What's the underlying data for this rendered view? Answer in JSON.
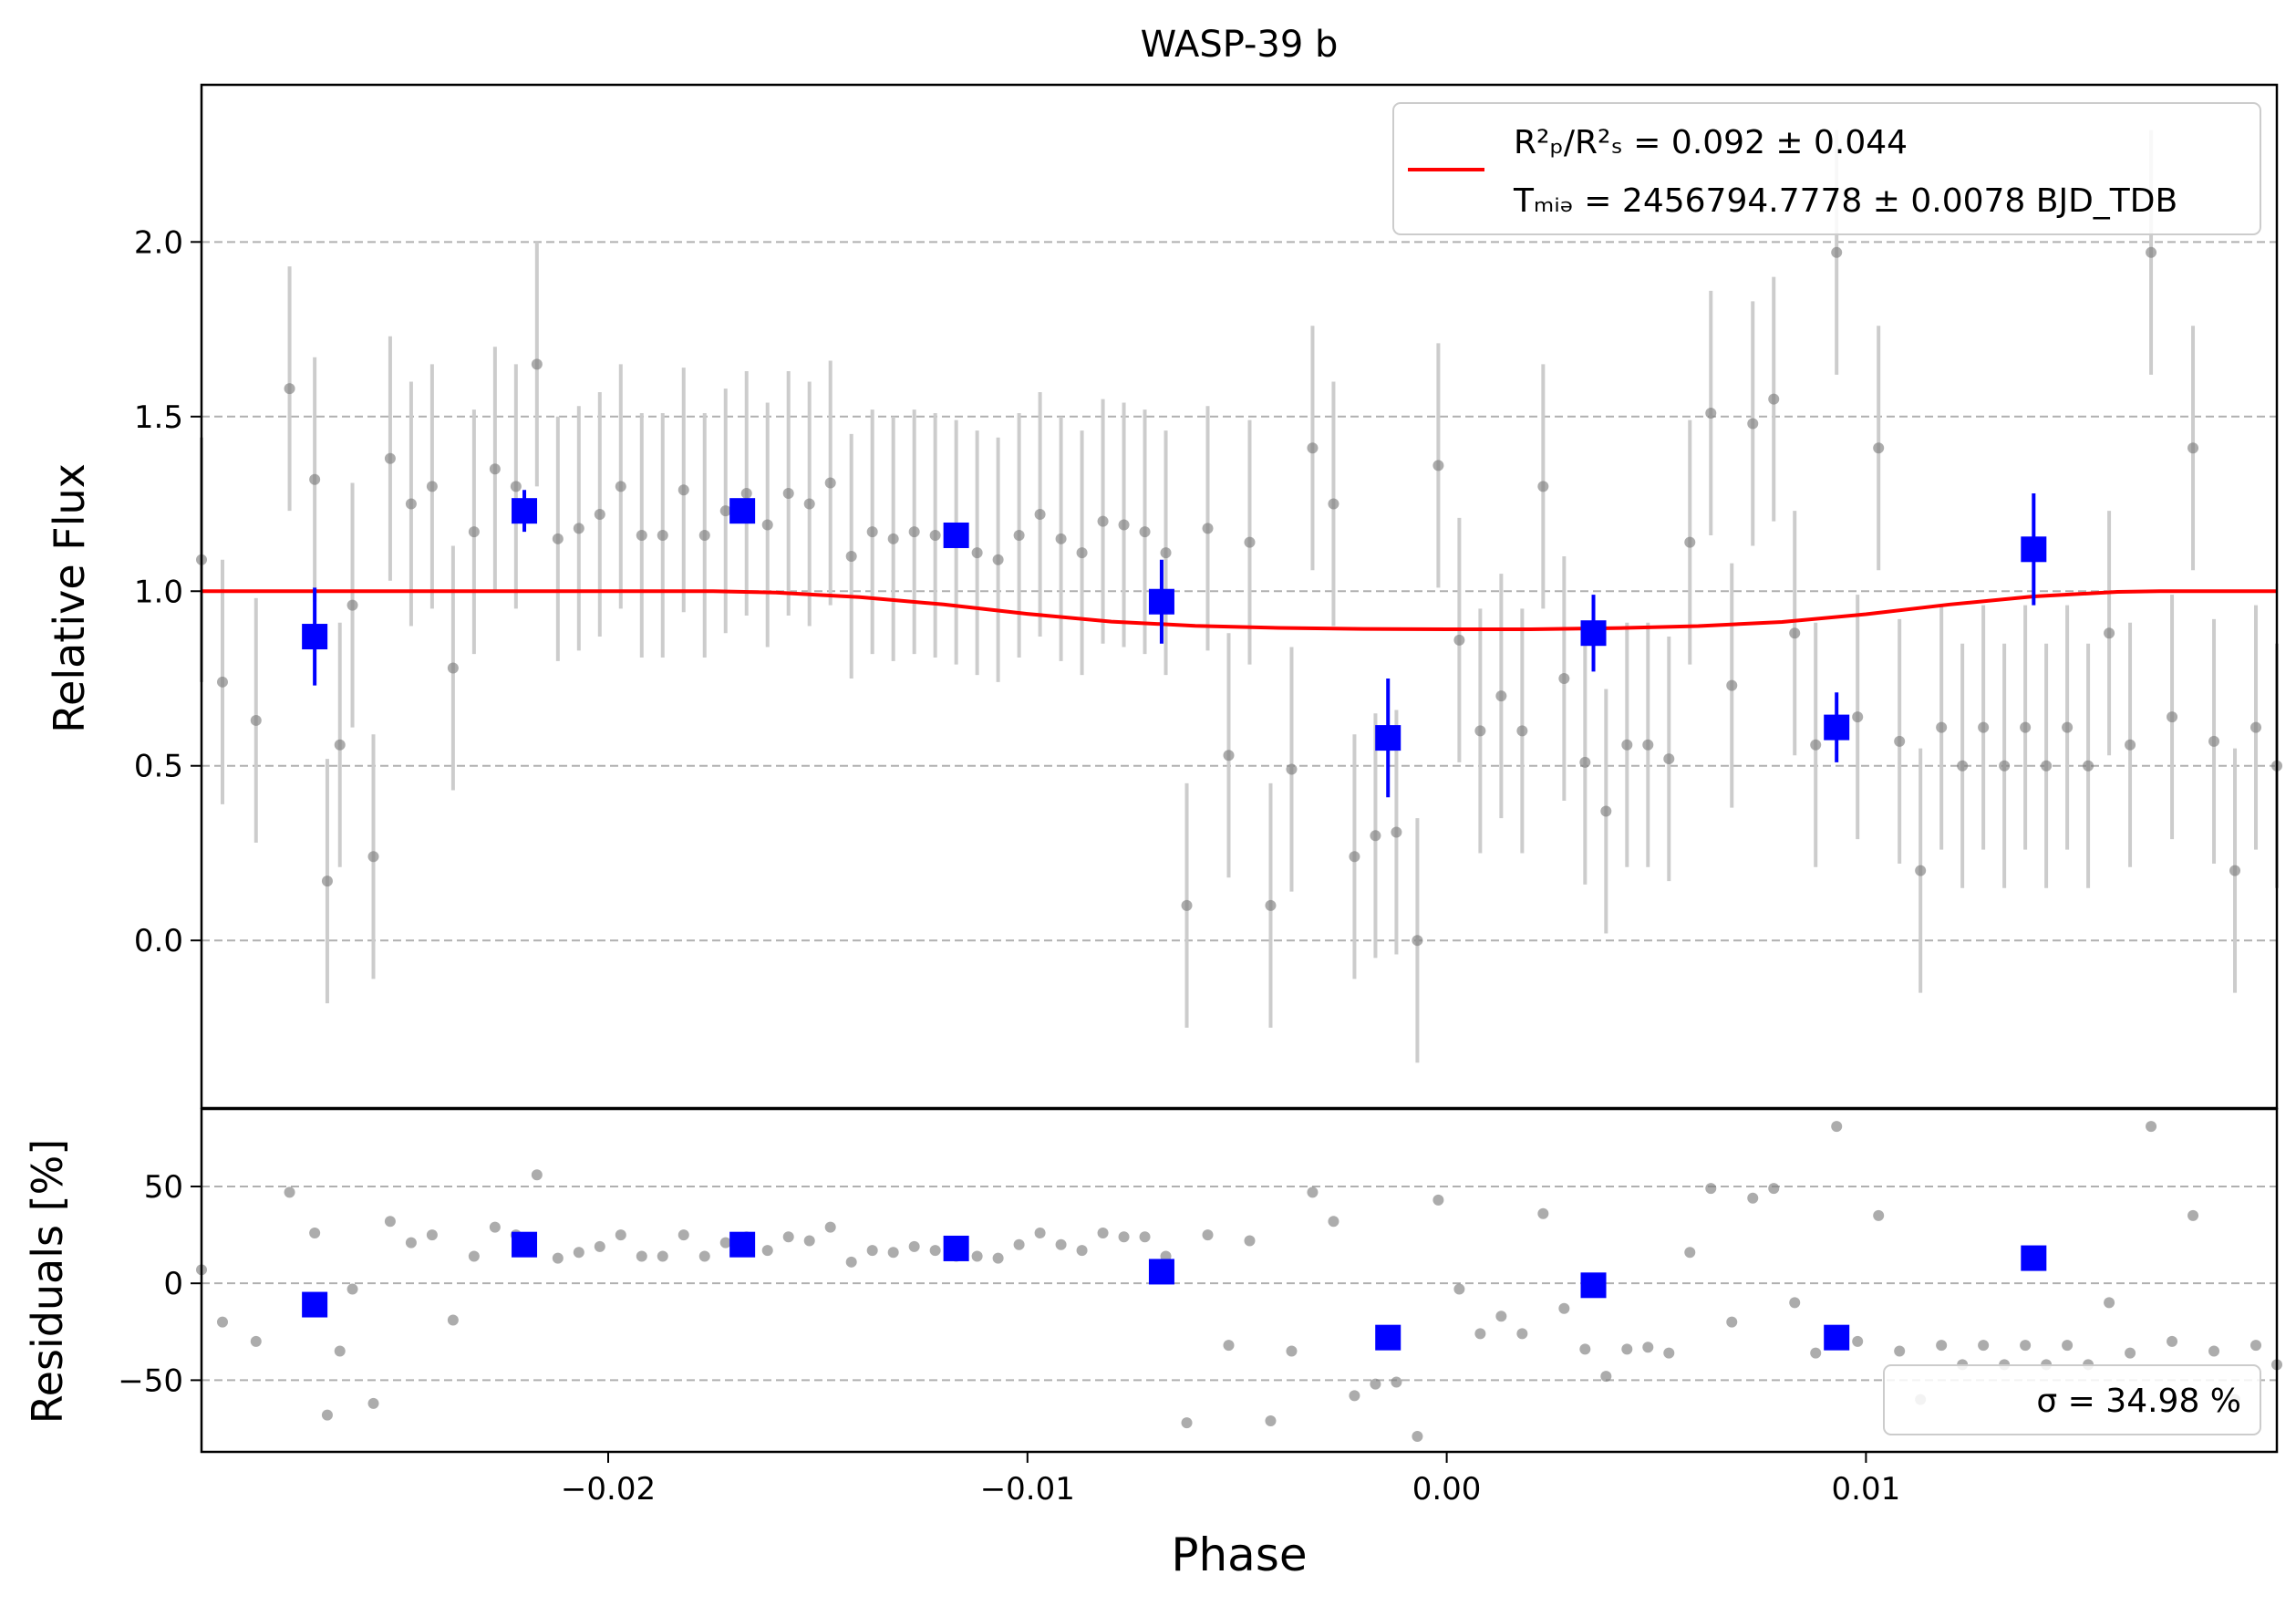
{
  "chart_data": {
    "type": "scatter",
    "title": "WASP-39 b",
    "x": {
      "label": "Phase",
      "range": [
        -0.0297,
        0.0198
      ],
      "ticks": [
        -0.02,
        -0.01,
        0.0,
        0.01
      ],
      "tick_labels": [
        "−0.02",
        "−0.01",
        "0.00",
        "0.01"
      ]
    },
    "top_panel": {
      "ylabel": "Relative Flux",
      "ylim": [
        -0.48,
        2.45
      ],
      "yticks": [
        0.0,
        0.5,
        1.0,
        1.5,
        2.0
      ],
      "ytick_labels": [
        "0.0",
        "0.5",
        "1.0",
        "1.5",
        "2.0"
      ],
      "grid": "horizontal dashed",
      "legend": {
        "placement": "top-right",
        "line_color": "#ff0000",
        "line1": "R²ₚ/R²ₛ = 0.092 ± 0.044",
        "line2": "Tₘᵢₔ = 2456794.7778 ± 0.0078 BJD_TDB"
      },
      "model": {
        "color": "#ff0000",
        "x": [
          -0.0297,
          -0.0175,
          -0.016,
          -0.014,
          -0.012,
          -0.01,
          -0.008,
          -0.006,
          -0.004,
          -0.002,
          0.0,
          0.002,
          0.004,
          0.006,
          0.008,
          0.01,
          0.012,
          0.014,
          0.016,
          0.017,
          0.0198
        ],
        "flux": [
          1.0,
          1.0,
          0.996,
          0.983,
          0.962,
          0.935,
          0.913,
          0.901,
          0.895,
          0.892,
          0.891,
          0.891,
          0.894,
          0.9,
          0.912,
          0.934,
          0.962,
          0.985,
          0.998,
          1.0,
          1.0
        ]
      },
      "raw": {
        "color": "#808080",
        "errorbar_color": "#cccccc",
        "x": [
          -0.0297,
          -0.0292,
          -0.0284,
          -0.0276,
          -0.027,
          -0.0267,
          -0.0264,
          -0.0261,
          -0.0256,
          -0.0252,
          -0.0247,
          -0.0242,
          -0.0237,
          -0.0232,
          -0.0227,
          -0.0222,
          -0.0217,
          -0.0212,
          -0.0207,
          -0.0202,
          -0.0197,
          -0.0192,
          -0.0187,
          -0.0182,
          -0.0177,
          -0.0172,
          -0.0167,
          -0.0162,
          -0.0157,
          -0.0152,
          -0.0147,
          -0.0142,
          -0.0137,
          -0.0132,
          -0.0127,
          -0.0122,
          -0.0117,
          -0.0112,
          -0.0107,
          -0.0102,
          -0.0097,
          -0.0092,
          -0.0087,
          -0.0082,
          -0.0077,
          -0.0072,
          -0.0067,
          -0.0062,
          -0.0057,
          -0.0052,
          -0.0047,
          -0.0042,
          -0.0037,
          -0.0032,
          -0.0027,
          -0.0022,
          -0.0017,
          -0.0012,
          -0.0007,
          -0.0002,
          0.0003,
          0.0008,
          0.0013,
          0.0018,
          0.0023,
          0.0028,
          0.0033,
          0.0038,
          0.0043,
          0.0048,
          0.0053,
          0.0058,
          0.0063,
          0.0068,
          0.0073,
          0.0078,
          0.0083,
          0.0088,
          0.0093,
          0.0098,
          0.0103,
          0.0108,
          0.0113,
          0.0118,
          0.0123,
          0.0128,
          0.0133,
          0.0138,
          0.0143,
          0.0148,
          0.0153,
          0.0158,
          0.0163,
          0.0168,
          0.0173,
          0.0178,
          0.0183,
          0.0188,
          0.0193,
          0.0198
        ],
        "flux": [
          1.09,
          0.74,
          0.63,
          1.58,
          1.32,
          0.17,
          0.56,
          0.96,
          0.24,
          1.38,
          1.25,
          1.3,
          0.78,
          1.17,
          1.35,
          1.3,
          1.65,
          1.15,
          1.18,
          1.22,
          1.3,
          1.16,
          1.16,
          1.29,
          1.16,
          1.23,
          1.28,
          1.19,
          1.28,
          1.25,
          1.31,
          1.1,
          1.17,
          1.15,
          1.17,
          1.16,
          1.14,
          1.11,
          1.09,
          1.16,
          1.22,
          1.15,
          1.11,
          1.2,
          1.19,
          1.17,
          1.11,
          0.1,
          1.18,
          0.53,
          1.14,
          0.1,
          0.49,
          1.41,
          1.25,
          0.24,
          0.3,
          0.31,
          0.0,
          1.36,
          0.86,
          0.6,
          0.7,
          0.6,
          1.3,
          0.75,
          0.51,
          0.37,
          0.56,
          0.56,
          0.52,
          1.14,
          1.51,
          0.73,
          1.48,
          1.55,
          0.88,
          0.56,
          1.97,
          0.64,
          1.41,
          0.57,
          0.2,
          0.61,
          0.5,
          0.61,
          0.5,
          0.61,
          0.5,
          0.61,
          0.5,
          0.88,
          0.56,
          1.97,
          0.64,
          1.41,
          0.57,
          0.2,
          0.61,
          0.5
        ],
        "error": 0.35
      },
      "binned": {
        "color": "#0000ff",
        "x": [
          -0.027,
          -0.022,
          -0.0168,
          -0.0117,
          -0.0068,
          -0.0014,
          0.0035,
          0.0093,
          0.014
        ],
        "flux": [
          0.87,
          1.23,
          1.23,
          1.16,
          0.97,
          0.58,
          0.88,
          0.61,
          1.12
        ],
        "error": [
          0.14,
          0.06,
          0.03,
          0.03,
          0.12,
          0.17,
          0.11,
          0.1,
          0.16
        ]
      }
    },
    "bottom_panel": {
      "ylabel": "Residuals [%]",
      "ylim": [
        -87,
        90
      ],
      "yticks": [
        -50,
        0,
        50
      ],
      "ytick_labels": [
        "−50",
        "0",
        "50"
      ],
      "grid": "horizontal dashed",
      "legend": {
        "placement": "bottom-right",
        "text": "σ = 34.98 %"
      },
      "raw_residuals": [
        7,
        -20,
        -30,
        47,
        26,
        -68,
        -35,
        -3,
        -62,
        32,
        21,
        25,
        -19,
        14,
        29,
        25,
        56,
        13,
        16,
        19,
        25,
        14,
        14,
        25,
        14,
        21,
        24,
        17,
        24,
        22,
        29,
        11,
        17,
        16,
        19,
        17,
        14,
        14,
        13,
        20,
        26,
        20,
        17,
        26,
        24,
        24,
        14,
        -72,
        25,
        -32,
        22,
        -71,
        -35,
        47,
        32,
        -58,
        -52,
        -51,
        -79,
        43,
        -3,
        -26,
        -17,
        -26,
        36,
        -13,
        -34,
        -48,
        -34,
        -33,
        -36,
        16,
        49,
        -20,
        44,
        49,
        -10,
        -36,
        81,
        -30,
        35,
        -35,
        -60,
        -32,
        -42,
        -32,
        -42,
        -32,
        -42,
        -32,
        -42,
        -10,
        -36,
        81,
        -30,
        35,
        -35,
        -60,
        -32,
        -42
      ],
      "binned_residuals": [
        -11,
        20,
        20,
        18,
        6,
        -28,
        -1,
        -28,
        13
      ]
    }
  }
}
